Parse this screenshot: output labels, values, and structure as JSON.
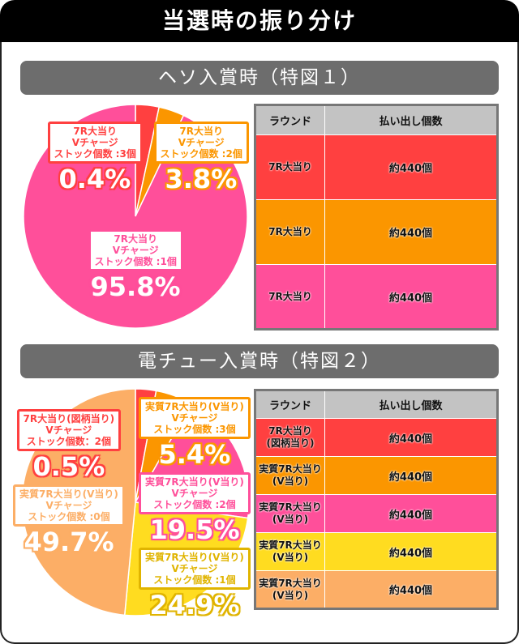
{
  "title": "当選時の振り分け",
  "sections": [
    {
      "title": "ヘソ入賞時（特図１）"
    },
    {
      "title": "電チュー入賞時（特図２）"
    }
  ],
  "table_headers": [
    "ラウンド",
    "払い出し個数"
  ],
  "chart_data": [
    {
      "type": "pie",
      "title": "ヘソ入賞時（特図１）",
      "slices": [
        {
          "label": [
            "7R大当り",
            "Vチャージ",
            "ストック個数 :3個"
          ],
          "value": 0.4,
          "pct": "0.4%",
          "color": "#ff4040"
        },
        {
          "label": [
            "7R大当り",
            "Vチャージ",
            "ストック個数 :2個"
          ],
          "value": 3.8,
          "pct": "3.8%",
          "color": "#fb9600"
        },
        {
          "label": [
            "7R大当り",
            "Vチャージ",
            "ストック個数 :1個"
          ],
          "value": 95.8,
          "pct": "95.8%",
          "color": "#ff4f9a"
        }
      ]
    },
    {
      "type": "pie",
      "title": "電チュー入賞時（特図２）",
      "slices": [
        {
          "label": [
            "7R大当り(図柄当り)",
            "Vチャージ",
            "ストック個数：2個"
          ],
          "value": 0.5,
          "pct": "0.5%",
          "color": "#ff4040"
        },
        {
          "label": [
            "実質7R大当り(V当り)",
            "Vチャージ",
            "ストック個数 :3個"
          ],
          "value": 5.4,
          "pct": "5.4%",
          "color": "#fb9600"
        },
        {
          "label": [
            "実質7R大当り(V当り)",
            "Vチャージ",
            "ストック個数 :2個"
          ],
          "value": 19.5,
          "pct": "19.5%",
          "color": "#ff4f9a"
        },
        {
          "label": [
            "実質7R大当り(V当り)",
            "Vチャージ",
            "ストック個数 :1個"
          ],
          "value": 24.9,
          "pct": "24.9%",
          "color": "#ffdc20"
        },
        {
          "label": [
            "実質7R大当り(V当り)",
            "Vチャージ",
            "ストック個数 :0個"
          ],
          "value": 49.7,
          "pct": "49.7%",
          "color": "#fcae66"
        }
      ]
    }
  ],
  "table1": [
    {
      "round": [
        "7R大当り"
      ],
      "payout": "約440個",
      "color": "#ff4040"
    },
    {
      "round": [
        "7R大当り"
      ],
      "payout": "約440個",
      "color": "#fb9600"
    },
    {
      "round": [
        "7R大当り"
      ],
      "payout": "約440個",
      "color": "#ff4f9a"
    }
  ],
  "table2": [
    {
      "round": [
        "7R大当り",
        "(図柄当り)"
      ],
      "payout": "約440個",
      "color": "#ff4040"
    },
    {
      "round": [
        "実質7R大当り",
        "(V当り)"
      ],
      "payout": "約440個",
      "color": "#fb9600"
    },
    {
      "round": [
        "実質7R大当り",
        "(V当り)"
      ],
      "payout": "約440個",
      "color": "#ff4f9a"
    },
    {
      "round": [
        "実質7R大当り",
        "(V当り)"
      ],
      "payout": "約440個",
      "color": "#ffdc20"
    },
    {
      "round": [
        "実質7R大当り",
        "(V当り)"
      ],
      "payout": "約440個",
      "color": "#fcae66"
    }
  ]
}
